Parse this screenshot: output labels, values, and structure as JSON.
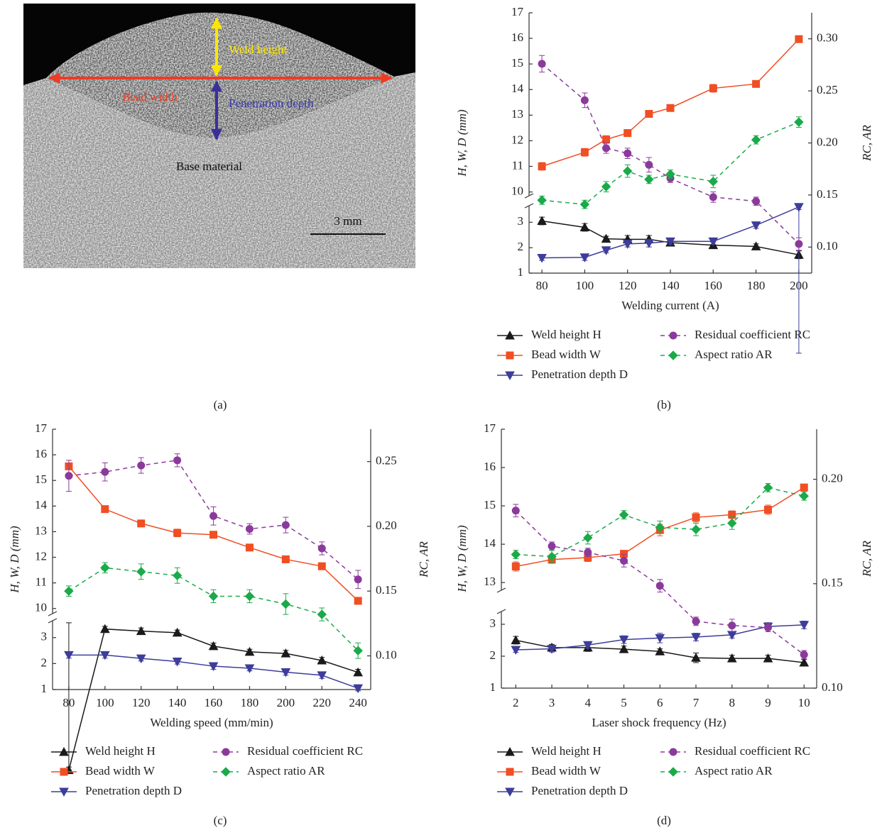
{
  "panel_a": {
    "labels": {
      "weld_height": "Weld height",
      "bead_width": "Bead width",
      "penetration_depth": "Penetration depth",
      "base_material": "Base material",
      "scale_bar": "3 mm"
    },
    "caption": "(a)"
  },
  "chart_data": [
    {
      "type": "line",
      "caption": "(b)",
      "xlabel": "Welding current (A)",
      "ylabel": "H, W, D (mm)",
      "y2label": "RC, AR",
      "x": [
        80,
        100,
        110,
        120,
        130,
        140,
        160,
        180,
        200
      ],
      "xlim": [
        74,
        206
      ],
      "xticks": [
        80,
        100,
        120,
        140,
        160,
        180,
        200
      ],
      "ylim": [
        1,
        17
      ],
      "ybreak": [
        3.65,
        9.85
      ],
      "yticks": [
        1,
        2,
        3,
        10,
        11,
        12,
        13,
        14,
        15,
        16,
        17
      ],
      "y2lim": [
        0.075,
        0.325
      ],
      "y2ticks": [
        {
          "value": 0.1,
          "label": "0.10"
        },
        0.15,
        {
          "value": 0.2,
          "label": "0.20"
        },
        0.25,
        {
          "value": 0.3,
          "label": "0.30"
        }
      ],
      "series": [
        {
          "name": "Weld height H",
          "color": "#1a1a1a",
          "marker": "triangle-up",
          "dashed": false,
          "values": [
            3.05,
            2.8,
            2.35,
            2.33,
            2.33,
            2.2,
            2.1,
            2.05,
            1.72
          ],
          "errors": [
            0.15,
            0.15,
            0.1,
            0.15,
            0.15,
            0.12,
            0.12,
            0.1,
            0.15
          ]
        },
        {
          "name": "Bead width W",
          "color": "#f04e23",
          "marker": "square",
          "dashed": false,
          "values": [
            11.0,
            11.55,
            12.05,
            12.3,
            13.05,
            13.28,
            14.05,
            14.22,
            15.97
          ],
          "errors": [
            0.15,
            0.15,
            0.15,
            0.12,
            0.1,
            0.12,
            0.15,
            0.12,
            0.12
          ]
        },
        {
          "name": "Penetration depth D",
          "color": "#3d3d9b",
          "marker": "triangle-down",
          "dashed": false,
          "values": [
            1.6,
            1.62,
            1.9,
            2.15,
            2.18,
            2.25,
            2.25,
            2.88,
            3.6
          ],
          "errors": [
            0.1,
            0.12,
            0.1,
            0.12,
            0.15,
            0.12,
            0.12,
            0.12,
            0.1
          ]
        },
        {
          "name": "Residual coefficient RC",
          "color": "#8b3a9b",
          "marker": "circle",
          "dashed": true,
          "axis": "y2",
          "values": [
            0.276,
            0.241,
            0.195,
            0.19,
            0.179,
            0.166,
            0.148,
            0.144,
            0.103
          ],
          "errors": [
            0.008,
            0.007,
            0.005,
            0.005,
            0.007,
            0.004,
            0.005,
            0.004,
            0.006
          ]
        },
        {
          "name": "Aspect ratio AR",
          "color": "#1aaa4a",
          "marker": "diamond",
          "dashed": true,
          "axis": "y2",
          "values": [
            0.145,
            0.141,
            0.158,
            0.173,
            0.165,
            0.17,
            0.163,
            0.203,
            0.22
          ],
          "errors": [
            0.004,
            0.004,
            0.005,
            0.006,
            0.004,
            0.004,
            0.006,
            0.004,
            0.005
          ]
        }
      ]
    },
    {
      "type": "line",
      "caption": "(c)",
      "xlabel": "Welding speed (mm/min)",
      "ylabel": "H, W, D (mm)",
      "y2label": "RC, AR",
      "x": [
        80,
        100,
        120,
        140,
        160,
        180,
        200,
        220,
        240
      ],
      "xlim": [
        71,
        247
      ],
      "xticks": [
        80,
        100,
        120,
        140,
        160,
        180,
        200,
        220,
        240
      ],
      "ylim": [
        1,
        17
      ],
      "ybreak": [
        3.65,
        9.8
      ],
      "yticks": [
        1,
        2,
        3,
        10,
        11,
        12,
        13,
        14,
        15,
        16,
        17
      ],
      "y2lim": [
        0.074,
        0.275
      ],
      "y2ticks": [
        {
          "value": 0.1,
          "label": "0.10"
        },
        0.15,
        {
          "value": 0.2,
          "label": "0.20"
        },
        0.25
      ],
      "series": [
        {
          "name": "Weld height H",
          "color": "#1a1a1a",
          "marker": "triangle-up",
          "dashed": false,
          "values": [
            3.69,
            3.33,
            3.25,
            3.19,
            2.67,
            2.45,
            2.39,
            2.12,
            1.66
          ],
          "errors": [
            0.12,
            0.1,
            0.12,
            0.1,
            0.12,
            0.1,
            0.12,
            0.12,
            0.12
          ]
        },
        {
          "name": "Bead width W",
          "color": "#f04e23",
          "marker": "square",
          "dashed": false,
          "values": [
            15.55,
            13.88,
            13.32,
            12.95,
            12.88,
            12.38,
            11.92,
            11.65,
            10.3
          ],
          "errors": [
            0.12,
            0.12,
            0.12,
            0.15,
            0.12,
            0.12,
            0.1,
            0.1,
            0.12
          ]
        },
        {
          "name": "Penetration depth D",
          "color": "#3d3d9b",
          "marker": "triangle-down",
          "dashed": false,
          "values": [
            2.33,
            2.33,
            2.2,
            2.08,
            1.9,
            1.82,
            1.67,
            1.55,
            1.05
          ],
          "errors": [
            0.12,
            0.12,
            0.1,
            0.1,
            0.12,
            0.1,
            0.12,
            0.12,
            0.1
          ]
        },
        {
          "name": "Residual coefficient RC",
          "color": "#8b3a9b",
          "marker": "circle",
          "dashed": true,
          "axis": "y2",
          "values": [
            0.239,
            0.242,
            0.247,
            0.251,
            0.208,
            0.198,
            0.201,
            0.183,
            0.159
          ],
          "errors": [
            0.012,
            0.007,
            0.006,
            0.005,
            0.007,
            0.004,
            0.006,
            0.005,
            0.007
          ]
        },
        {
          "name": "Aspect ratio AR",
          "color": "#1aaa4a",
          "marker": "diamond",
          "dashed": true,
          "axis": "y2",
          "values": [
            0.15,
            0.168,
            0.165,
            0.162,
            0.146,
            0.146,
            0.14,
            0.132,
            0.104
          ],
          "errors": [
            0.004,
            0.004,
            0.006,
            0.006,
            0.005,
            0.005,
            0.008,
            0.005,
            0.006
          ]
        }
      ]
    },
    {
      "type": "line",
      "caption": "(d)",
      "xlabel": "Laser shock frequency (Hz)",
      "ylabel": "H, W, D (mm)",
      "y2label": "RC, AR",
      "x": [
        2,
        3,
        4,
        5,
        6,
        7,
        8,
        9,
        10
      ],
      "xlim": [
        1.6,
        10.35
      ],
      "xticks": [
        2,
        3,
        4,
        5,
        6,
        7,
        8,
        9,
        10
      ],
      "ylim": [
        1,
        17
      ],
      "ybreak": [
        3.4,
        12.8
      ],
      "yticks": [
        1,
        2,
        3,
        13,
        14,
        15,
        16,
        17
      ],
      "y2lim": [
        0.1,
        0.224
      ],
      "y2ticks": [
        {
          "value": 0.1,
          "label": "0.10"
        },
        0.15,
        {
          "value": 0.2,
          "label": "0.20"
        }
      ],
      "series": [
        {
          "name": "Weld height H",
          "color": "#1a1a1a",
          "marker": "triangle-up",
          "dashed": false,
          "values": [
            2.5,
            2.27,
            2.27,
            2.22,
            2.15,
            1.95,
            1.93,
            1.93,
            1.8
          ],
          "errors": [
            0.12,
            0.1,
            0.12,
            0.1,
            0.08,
            0.15,
            0.1,
            0.1,
            0.1
          ]
        },
        {
          "name": "Bead width W",
          "color": "#f04e23",
          "marker": "square",
          "dashed": false,
          "values": [
            13.42,
            13.6,
            13.65,
            13.75,
            14.37,
            14.7,
            14.77,
            14.9,
            15.48
          ],
          "errors": [
            0.12,
            0.1,
            0.1,
            0.08,
            0.15,
            0.12,
            0.1,
            0.12,
            0.08
          ]
        },
        {
          "name": "Penetration depth D",
          "color": "#3d3d9b",
          "marker": "triangle-down",
          "dashed": false,
          "values": [
            2.2,
            2.23,
            2.35,
            2.52,
            2.57,
            2.6,
            2.67,
            2.93,
            2.98
          ],
          "errors": [
            0.08,
            0.1,
            0.1,
            0.12,
            0.15,
            0.12,
            0.1,
            0.12,
            0.12
          ]
        },
        {
          "name": "Residual coefficient RC",
          "color": "#8b3a9b",
          "marker": "circle",
          "dashed": true,
          "axis": "y2",
          "values": [
            0.185,
            0.168,
            0.165,
            0.161,
            0.149,
            0.132,
            0.13,
            0.129,
            0.116
          ],
          "errors": [
            0.003,
            0.002,
            0.002,
            0.003,
            0.003,
            0.002,
            0.003,
            0.002,
            0.002
          ]
        },
        {
          "name": "Aspect ratio AR",
          "color": "#1aaa4a",
          "marker": "diamond",
          "dashed": true,
          "axis": "y2",
          "values": [
            0.164,
            0.163,
            0.172,
            0.183,
            0.177,
            0.176,
            0.179,
            0.196,
            0.192
          ],
          "errors": [
            0.002,
            0.003,
            0.003,
            0.002,
            0.003,
            0.003,
            0.003,
            0.002,
            0.002
          ]
        }
      ]
    }
  ]
}
